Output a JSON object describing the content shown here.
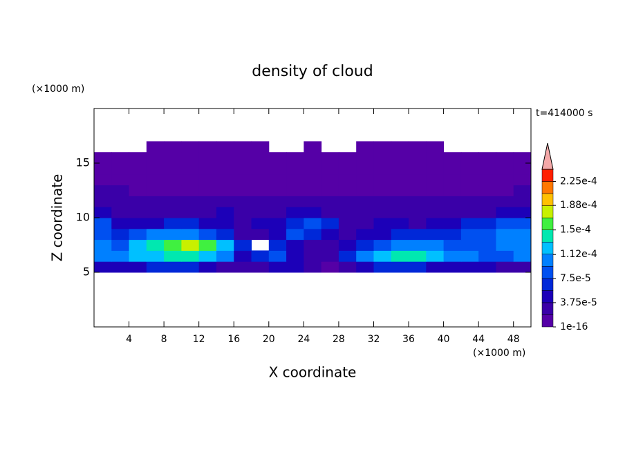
{
  "chart_data": {
    "type": "contour",
    "title": "density of cloud",
    "xlabel": "X coordinate",
    "ylabel": "Z coordinate",
    "x_unit": "(×1000 m)",
    "y_unit": "(×1000 m)",
    "annotation": "t=414000 s",
    "xlim": [
      0,
      50
    ],
    "ylim": [
      0,
      20
    ],
    "xticks": [
      4,
      8,
      12,
      16,
      20,
      24,
      28,
      32,
      36,
      40,
      44,
      48
    ],
    "yticks": [
      5,
      10,
      15
    ],
    "x": [
      1,
      3,
      5,
      7,
      9,
      11,
      13,
      15,
      17,
      19,
      21,
      23,
      25,
      27,
      29,
      31,
      33,
      35,
      37,
      39,
      41,
      43,
      45,
      47,
      49
    ],
    "y": [
      5.5,
      6.5,
      7.5,
      8.5,
      9.5,
      10.5,
      11.5,
      12.5,
      13.5,
      14.5,
      15.5,
      16.5
    ],
    "values": [
      [
        4.7e-05,
        4.7e-05,
        4.7e-05,
        6.5e-05,
        6.5e-05,
        6.5e-05,
        4.7e-05,
        2.8e-05,
        2.8e-05,
        2.8e-05,
        4.7e-05,
        4.7e-05,
        2.8e-05,
        1e-05,
        2.8e-05,
        4.7e-05,
        6.5e-05,
        6.5e-05,
        6.5e-05,
        4.7e-05,
        4.7e-05,
        4.7e-05,
        4.7e-05,
        2.8e-05,
        2.8e-05
      ],
      [
        0.000103,
        0.000103,
        0.000122,
        0.000122,
        0.00014,
        0.00014,
        0.000122,
        0.000103,
        4.7e-05,
        6.5e-05,
        8.4e-05,
        4.7e-05,
        2.8e-05,
        2.8e-05,
        6.5e-05,
        0.000103,
        0.000122,
        0.00014,
        0.00014,
        0.000122,
        0.000103,
        0.000103,
        8.4e-05,
        8.4e-05,
        0.000103
      ],
      [
        0.000103,
        8.4e-05,
        0.000122,
        0.00014,
        0.00016,
        0.000178,
        0.00016,
        0.000122,
        6.5e-05,
        null,
        6.5e-05,
        4.7e-05,
        2.8e-05,
        2.8e-05,
        4.7e-05,
        6.5e-05,
        8.4e-05,
        0.000103,
        0.000103,
        0.000103,
        8.4e-05,
        8.4e-05,
        8.4e-05,
        0.000103,
        0.000103
      ],
      [
        8.4e-05,
        6.5e-05,
        8.4e-05,
        0.000103,
        0.000103,
        0.000103,
        8.4e-05,
        6.5e-05,
        2.8e-05,
        2.8e-05,
        4.7e-05,
        8.4e-05,
        6.5e-05,
        4.7e-05,
        2.8e-05,
        4.7e-05,
        4.7e-05,
        6.5e-05,
        6.5e-05,
        6.5e-05,
        6.5e-05,
        8.4e-05,
        8.4e-05,
        0.000103,
        0.000103
      ],
      [
        8.4e-05,
        4.7e-05,
        4.7e-05,
        4.7e-05,
        6.5e-05,
        6.5e-05,
        4.7e-05,
        4.7e-05,
        2.8e-05,
        4.7e-05,
        4.7e-05,
        6.5e-05,
        8.4e-05,
        6.5e-05,
        2.8e-05,
        2.8e-05,
        4.7e-05,
        4.7e-05,
        2.8e-05,
        4.7e-05,
        4.7e-05,
        6.5e-05,
        6.5e-05,
        8.4e-05,
        8.4e-05
      ],
      [
        4.7e-05,
        2.8e-05,
        2.8e-05,
        2.8e-05,
        2.8e-05,
        2.8e-05,
        2.8e-05,
        4.7e-05,
        2.8e-05,
        2.8e-05,
        2.8e-05,
        4.7e-05,
        4.7e-05,
        2.8e-05,
        2.8e-05,
        2.8e-05,
        2.8e-05,
        2.8e-05,
        2.8e-05,
        2.8e-05,
        2.8e-05,
        2.8e-05,
        2.8e-05,
        4.7e-05,
        4.7e-05
      ],
      [
        2.8e-05,
        2.8e-05,
        2.8e-05,
        2.8e-05,
        2.8e-05,
        2.8e-05,
        2.8e-05,
        2.8e-05,
        2.8e-05,
        2.8e-05,
        2.8e-05,
        2.8e-05,
        2.8e-05,
        2.8e-05,
        2.8e-05,
        2.8e-05,
        2.8e-05,
        2.8e-05,
        2.8e-05,
        2.8e-05,
        2.8e-05,
        2.8e-05,
        2.8e-05,
        2.8e-05,
        2.8e-05
      ],
      [
        2.8e-05,
        2.8e-05,
        1e-05,
        1e-05,
        1e-05,
        1e-05,
        1e-05,
        1e-05,
        1e-05,
        1e-05,
        1e-05,
        1e-05,
        1e-05,
        1e-05,
        1e-05,
        1e-05,
        1e-05,
        1e-05,
        1e-05,
        1e-05,
        1e-05,
        1e-05,
        1e-05,
        1e-05,
        2.8e-05
      ],
      [
        1e-05,
        1e-05,
        1e-05,
        1e-05,
        1e-05,
        1e-05,
        1e-05,
        1e-05,
        1e-05,
        1e-05,
        1e-05,
        1e-05,
        1e-05,
        1e-05,
        1e-05,
        1e-05,
        1e-05,
        1e-05,
        1e-05,
        1e-05,
        1e-05,
        1e-05,
        1e-05,
        1e-05,
        1e-05
      ],
      [
        1e-05,
        1e-05,
        1e-05,
        1e-05,
        1e-05,
        1e-05,
        1e-05,
        1e-05,
        1e-05,
        1e-05,
        1e-05,
        1e-05,
        1e-05,
        1e-05,
        1e-05,
        1e-05,
        1e-05,
        1e-05,
        1e-05,
        1e-05,
        1e-05,
        1e-05,
        1e-05,
        1e-05,
        1e-05
      ],
      [
        1e-05,
        1e-05,
        1e-05,
        1e-05,
        1e-05,
        1e-05,
        1e-05,
        1e-05,
        1e-05,
        1e-05,
        1e-05,
        1e-05,
        1e-05,
        1e-05,
        1e-05,
        1e-05,
        1e-05,
        1e-05,
        1e-05,
        1e-05,
        1e-05,
        1e-05,
        1e-05,
        1e-05,
        1e-05
      ],
      [
        null,
        null,
        null,
        1e-05,
        1e-05,
        1e-05,
        1e-05,
        1e-05,
        1e-05,
        1e-05,
        null,
        null,
        1e-05,
        null,
        null,
        1e-05,
        1e-05,
        1e-05,
        1e-05,
        1e-05,
        null,
        null,
        null,
        null,
        null
      ]
    ],
    "colorbar": {
      "levels": [
        1e-16,
        1.875e-05,
        3.75e-05,
        5.625e-05,
        7.5e-05,
        9.375e-05,
        0.0001125,
        0.00013125,
        0.00015,
        0.00016875,
        0.0001875,
        0.00020625,
        0.000225,
        0.00024375
      ],
      "colors": [
        "#5500a6",
        "#3a00a8",
        "#1c00b8",
        "#0028d8",
        "#0050f0",
        "#0080ff",
        "#00c0ff",
        "#00e8b0",
        "#40f040",
        "#c8f000",
        "#ffc000",
        "#ff7800",
        "#ff2000"
      ],
      "extend_color": "#f4a8a8",
      "ticks": [
        1e-16,
        {
          "value": 3.75e-05,
          "label": "3.75e-5"
        },
        {
          "value": 7.5e-05,
          "label": "7.5e-5"
        },
        {
          "value": 0.000112,
          "label": "1.12e-4"
        },
        {
          "value": 0.00015,
          "label": "1.5e-4"
        },
        {
          "value": 0.000188,
          "label": "1.88e-4"
        },
        {
          "value": 0.000225,
          "label": "2.25e-4"
        }
      ]
    }
  }
}
